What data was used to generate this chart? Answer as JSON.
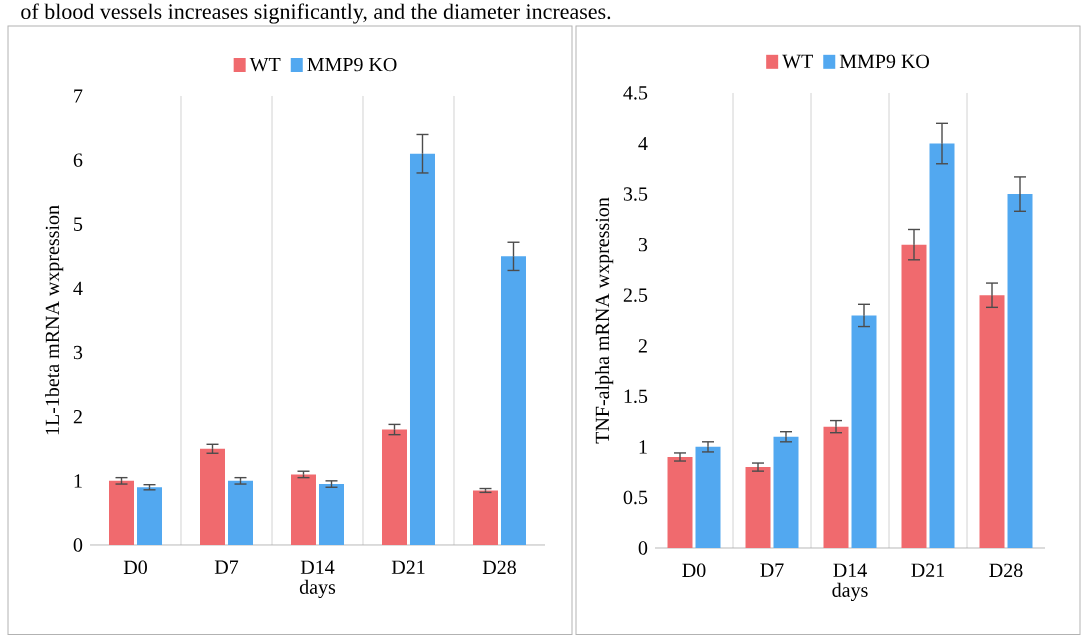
{
  "chart_data": [
    {
      "type": "bar",
      "annotations": [
        "of blood vessels increases significantly, and the diameter increases."
      ],
      "xlabel": "days",
      "ylabel": "1L-1beta mRNA wxpression",
      "categories": [
        "D0",
        "D7",
        "D14",
        "D21",
        "D28"
      ],
      "series": [
        {
          "name": "WT",
          "color": "#f06a6e",
          "values": [
            1.0,
            1.5,
            1.1,
            1.8,
            0.85
          ],
          "errors": [
            0.05,
            0.07,
            0.05,
            0.08,
            0.03
          ]
        },
        {
          "name": "MMP9 KO",
          "color": "#52a8f0",
          "values": [
            0.9,
            1.0,
            0.95,
            6.1,
            4.5
          ],
          "errors": [
            0.04,
            0.05,
            0.05,
            0.3,
            0.22
          ]
        }
      ],
      "ylim": [
        0,
        7
      ],
      "yticks": [
        0,
        1,
        2,
        3,
        4,
        5,
        6,
        7
      ],
      "grid": "x",
      "legend": "top"
    },
    {
      "type": "bar",
      "xlabel": "days",
      "ylabel": "TNF-alpha mRNA wxpression",
      "categories": [
        "D0",
        "D7",
        "D14",
        "D21",
        "D28"
      ],
      "series": [
        {
          "name": "WT",
          "color": "#f06a6e",
          "values": [
            0.9,
            0.8,
            1.2,
            3.0,
            2.5
          ],
          "errors": [
            0.04,
            0.04,
            0.06,
            0.15,
            0.12
          ]
        },
        {
          "name": "MMP9 KO",
          "color": "#52a8f0",
          "values": [
            1.0,
            1.1,
            2.3,
            4.0,
            3.5
          ],
          "errors": [
            0.05,
            0.05,
            0.11,
            0.2,
            0.17
          ]
        }
      ],
      "ylim": [
        0,
        4.5
      ],
      "yticks": [
        0,
        0.5,
        1,
        1.5,
        2,
        2.5,
        3,
        3.5,
        4,
        4.5
      ],
      "grid": "x",
      "legend": "top"
    }
  ]
}
